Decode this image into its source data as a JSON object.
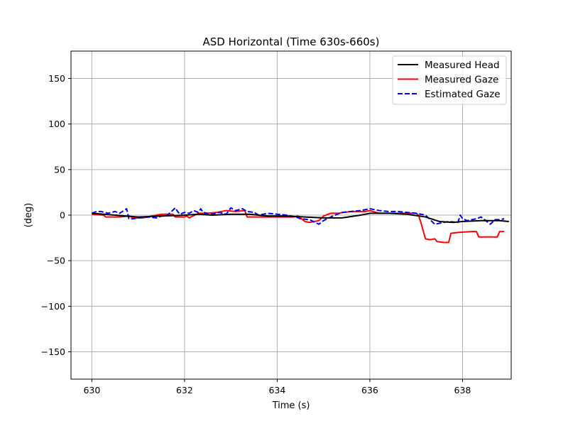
{
  "chart_data": {
    "type": "line",
    "title": "ASD Horizontal (Time 630s-660s)",
    "xlabel": "Time (s)",
    "ylabel": "(deg)",
    "xlim": [
      629.55,
      639.05
    ],
    "ylim": [
      -180,
      180
    ],
    "xticks": [
      630,
      632,
      634,
      636,
      638
    ],
    "xtick_labels": [
      "630",
      "632",
      "634",
      "636",
      "638"
    ],
    "yticks": [
      150,
      100,
      50,
      0,
      -50,
      -100,
      -150
    ],
    "ytick_labels": [
      "150",
      "100",
      "50",
      "0",
      "−50",
      "−100",
      "−150"
    ],
    "grid": true,
    "legend_position": "top-right",
    "series": [
      {
        "name": "Measured Head",
        "color": "#000000",
        "style": "solid",
        "x": [
          630.0,
          630.5,
          631.0,
          631.5,
          632.0,
          632.3,
          632.6,
          633.0,
          633.4,
          633.8,
          634.2,
          634.6,
          635.0,
          635.4,
          635.8,
          636.0,
          636.4,
          636.8,
          637.2,
          637.5,
          637.8,
          638.0,
          638.4,
          638.8,
          639.0
        ],
        "y": [
          2,
          0,
          -2,
          -1,
          0,
          1,
          0,
          1,
          1,
          -1,
          -1,
          -2,
          -3,
          -3,
          0,
          2,
          2,
          1,
          -2,
          -7,
          -8,
          -7,
          -6,
          -6,
          -7
        ]
      },
      {
        "name": "Measured Gaze",
        "color": "#ff0000",
        "style": "solid",
        "x": [
          630.0,
          630.25,
          630.3,
          630.6,
          630.8,
          630.9,
          631.1,
          631.3,
          631.5,
          631.75,
          631.8,
          632.0,
          632.05,
          632.1,
          632.3,
          632.5,
          632.7,
          632.9,
          633.1,
          633.3,
          633.35,
          633.5,
          633.8,
          634.2,
          634.35,
          634.45,
          634.6,
          634.7,
          634.9,
          635.0,
          635.15,
          635.3,
          635.6,
          635.9,
          636.0,
          636.2,
          636.6,
          637.0,
          637.05,
          637.1,
          637.2,
          637.3,
          637.4,
          637.45,
          637.6,
          637.7,
          637.75,
          637.9,
          638.2,
          638.3,
          638.35,
          638.5,
          638.7,
          638.75,
          638.8,
          638.9
        ],
        "y": [
          1,
          0,
          -2,
          -2,
          -1,
          -3,
          -3,
          -1,
          1,
          1,
          -2,
          -2,
          -1,
          -3,
          2,
          2,
          3,
          5,
          4,
          5,
          -2,
          -2,
          -2,
          -2,
          -2,
          -1,
          -7,
          -8,
          -6,
          -1,
          2,
          2,
          4,
          4,
          5,
          2,
          2,
          2,
          0,
          -8,
          -26,
          -27,
          -26,
          -29,
          -30,
          -30,
          -20,
          -19,
          -18,
          -18,
          -24,
          -24,
          -24,
          -24,
          -18,
          -18
        ]
      },
      {
        "name": "Estimated Gaze",
        "color": "#0000ff",
        "style": "dashed",
        "x": [
          630.0,
          630.1,
          630.2,
          630.35,
          630.5,
          630.6,
          630.75,
          630.8,
          630.9,
          631.0,
          631.2,
          631.4,
          631.5,
          631.6,
          631.7,
          631.8,
          631.85,
          631.9,
          632.0,
          632.1,
          632.2,
          632.3,
          632.35,
          632.4,
          632.5,
          632.6,
          632.75,
          632.9,
          633.0,
          633.1,
          633.25,
          633.35,
          633.5,
          633.6,
          633.8,
          634.0,
          634.2,
          634.4,
          634.5,
          634.7,
          634.9,
          635.0,
          635.2,
          635.4,
          635.6,
          635.8,
          636.0,
          636.2,
          636.4,
          636.6,
          636.8,
          637.0,
          637.2,
          637.4,
          637.5,
          637.7,
          637.9,
          637.95,
          638.0,
          638.1,
          638.3,
          638.4,
          638.5,
          638.6,
          638.7,
          638.8,
          638.9
        ],
        "y": [
          2,
          4,
          4,
          2,
          4,
          2,
          7,
          -4,
          -4,
          -3,
          -2,
          -3,
          -1,
          -1,
          3,
          8,
          4,
          1,
          3,
          2,
          5,
          3,
          7,
          3,
          2,
          1,
          3,
          1,
          8,
          5,
          7,
          4,
          3,
          0,
          2,
          1,
          0,
          -2,
          -4,
          -5,
          -10,
          -6,
          -1,
          3,
          4,
          5,
          7,
          5,
          4,
          4,
          3,
          2,
          0,
          -10,
          -9,
          -7,
          -8,
          0,
          -4,
          -6,
          -4,
          -2,
          -6,
          -10,
          -5,
          -5,
          -4
        ]
      }
    ]
  }
}
